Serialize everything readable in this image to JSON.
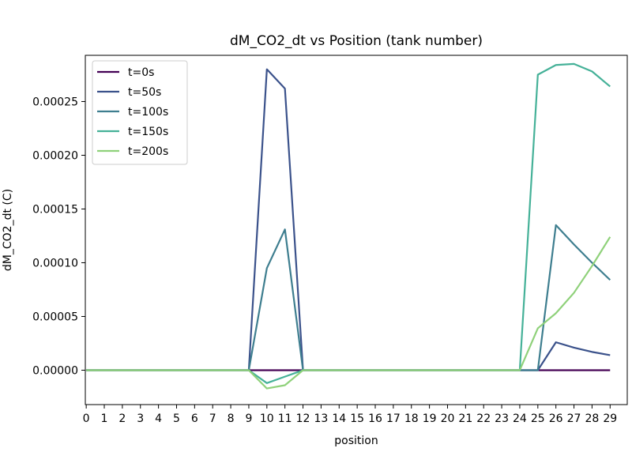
{
  "chart_data": {
    "type": "line",
    "title": "dM_CO2_dt vs Position (tank number)",
    "xlabel": "position",
    "ylabel": "dM_CO2_dt (C)",
    "xlim": [
      -0.05,
      29.95
    ],
    "ylim": [
      -3.2e-05,
      0.000293
    ],
    "x_ticks": [
      0,
      1,
      2,
      3,
      4,
      5,
      6,
      7,
      8,
      9,
      10,
      11,
      12,
      13,
      14,
      15,
      16,
      17,
      18,
      19,
      20,
      21,
      22,
      23,
      24,
      25,
      26,
      27,
      28,
      29
    ],
    "y_ticks": [
      0.0,
      5e-05,
      0.0001,
      0.00015,
      0.0002,
      0.00025
    ],
    "y_tick_labels": [
      "0.00000",
      "0.00005",
      "0.00010",
      "0.00015",
      "0.00020",
      "0.00025"
    ],
    "legend_position": "top-left",
    "grid": false,
    "x": [
      0,
      1,
      2,
      3,
      4,
      5,
      6,
      7,
      8,
      9,
      10,
      11,
      12,
      13,
      14,
      15,
      16,
      17,
      18,
      19,
      20,
      21,
      22,
      23,
      24,
      25,
      26,
      27,
      28,
      29
    ],
    "series": [
      {
        "name": "t=0s",
        "color": "#440154",
        "values": [
          0,
          0,
          0,
          0,
          0,
          0,
          0,
          0,
          0,
          0,
          0,
          0,
          0,
          0,
          0,
          0,
          0,
          0,
          0,
          0,
          0,
          0,
          0,
          0,
          0,
          0,
          0,
          0,
          0,
          0
        ]
      },
      {
        "name": "t=50s",
        "color": "#3b528b",
        "values": [
          0,
          0,
          0,
          0,
          0,
          0,
          0,
          0,
          0,
          0,
          0.00028,
          0.000262,
          0,
          0,
          0,
          0,
          0,
          0,
          0,
          0,
          0,
          0,
          0,
          0,
          0,
          0,
          2.6e-05,
          2.1e-05,
          1.7e-05,
          1.4e-05
        ]
      },
      {
        "name": "t=100s",
        "color": "#3e7e8f",
        "values": [
          0,
          0,
          0,
          0,
          0,
          0,
          0,
          0,
          0,
          0,
          9.5e-05,
          0.000131,
          0,
          0,
          0,
          0,
          0,
          0,
          0,
          0,
          0,
          0,
          0,
          0,
          0,
          0,
          0.000135,
          0.000117,
          0.0001,
          8.4e-05
        ]
      },
      {
        "name": "t=150s",
        "color": "#45b198",
        "values": [
          0,
          0,
          0,
          0,
          0,
          0,
          0,
          0,
          0,
          0,
          -1.2e-05,
          -6e-06,
          0,
          0,
          0,
          0,
          0,
          0,
          0,
          0,
          0,
          0,
          0,
          0,
          0,
          0.000275,
          0.000284,
          0.000285,
          0.000278,
          0.000264
        ]
      },
      {
        "name": "t=200s",
        "color": "#8fd17a",
        "values": [
          0,
          0,
          0,
          0,
          0,
          0,
          0,
          0,
          0,
          0,
          -1.7e-05,
          -1.4e-05,
          0,
          0,
          0,
          0,
          0,
          0,
          0,
          0,
          0,
          0,
          0,
          0,
          0,
          3.9e-05,
          5.3e-05,
          7.2e-05,
          9.7e-05,
          0.000124
        ]
      }
    ]
  }
}
